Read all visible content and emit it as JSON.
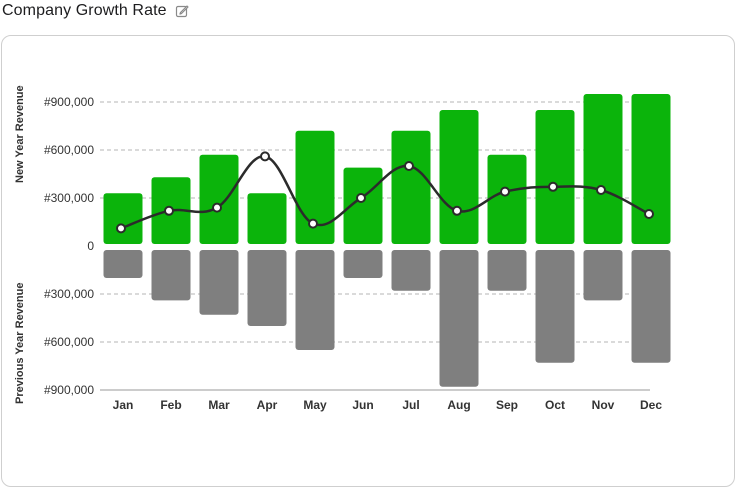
{
  "header": {
    "title": "Company Growth Rate",
    "edit_icon": "pencil-square-icon"
  },
  "colors": {
    "positive": "#0bb40b",
    "negative": "#7f7f7f",
    "line": "#2b2b2b",
    "grid": "#b5b5b5"
  },
  "chart_data": {
    "type": "bar",
    "categories": [
      "Jan",
      "Feb",
      "Mar",
      "Apr",
      "May",
      "Jun",
      "Jul",
      "Aug",
      "Sep",
      "Oct",
      "Nov",
      "Dec"
    ],
    "series": [
      {
        "name": "New Year Revenue",
        "values": [
          330000,
          430000,
          570000,
          330000,
          720000,
          490000,
          720000,
          850000,
          570000,
          850000,
          950000,
          950000
        ]
      },
      {
        "name": "Previous Year Revenue",
        "values": [
          -200000,
          -340000,
          -430000,
          -500000,
          -650000,
          -200000,
          -280000,
          -880000,
          -280000,
          -730000,
          -340000,
          -730000
        ]
      },
      {
        "type": "line",
        "values": [
          110000,
          220000,
          240000,
          560000,
          140000,
          300000,
          500000,
          220000,
          340000,
          370000,
          350000,
          200000
        ]
      }
    ],
    "ylabel_top": "New Year Revenue",
    "ylabel_bottom": "Previous Year Revenue",
    "yticks": [
      {
        "value": 900000,
        "label": "#900,000"
      },
      {
        "value": 600000,
        "label": "#600,000"
      },
      {
        "value": 300000,
        "label": "#300,000"
      },
      {
        "value": 0,
        "label": "0"
      },
      {
        "value": -300000,
        "label": "#300,000"
      },
      {
        "value": -600000,
        "label": "#600,000"
      },
      {
        "value": -900000,
        "label": "#900,000"
      }
    ],
    "ylim": [
      -900000,
      950000
    ],
    "grid": true
  }
}
